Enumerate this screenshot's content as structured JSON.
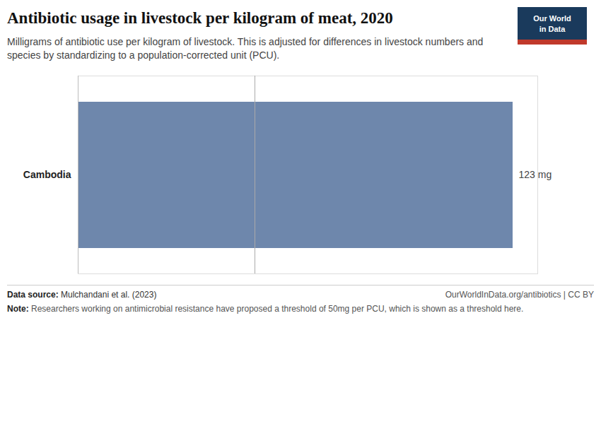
{
  "chart_data": {
    "type": "bar",
    "orientation": "horizontal",
    "title": "Antibiotic usage in livestock per kilogram of meat, 2020",
    "subtitle": "Milligrams of antibiotic use per kilogram of livestock. This is adjusted for differences in livestock numbers and\nspecies by standardizing to a population-corrected unit (PCU).",
    "categories": [
      "Cambodia"
    ],
    "values": [
      123
    ],
    "value_labels": [
      "123 mg"
    ],
    "data_labels": true,
    "color": "#6e87ac",
    "xlim": [
      0,
      130
    ],
    "threshold": 50,
    "tick_labels": "y",
    "grid": false,
    "source_label": "Data source:",
    "source": "Mulchandani et al. (2023)",
    "website": "OurWorldInData.org/antibiotics | CC BY",
    "note_label": "Note:",
    "note": "Researchers working on antimicrobial resistance have proposed a threshold of 50mg per PCU, which is shown as a threshold here.",
    "logo": {
      "lines": [
        "Our World",
        "in Data"
      ],
      "color": "#1a3a5c",
      "accent": "#c0392b"
    }
  }
}
